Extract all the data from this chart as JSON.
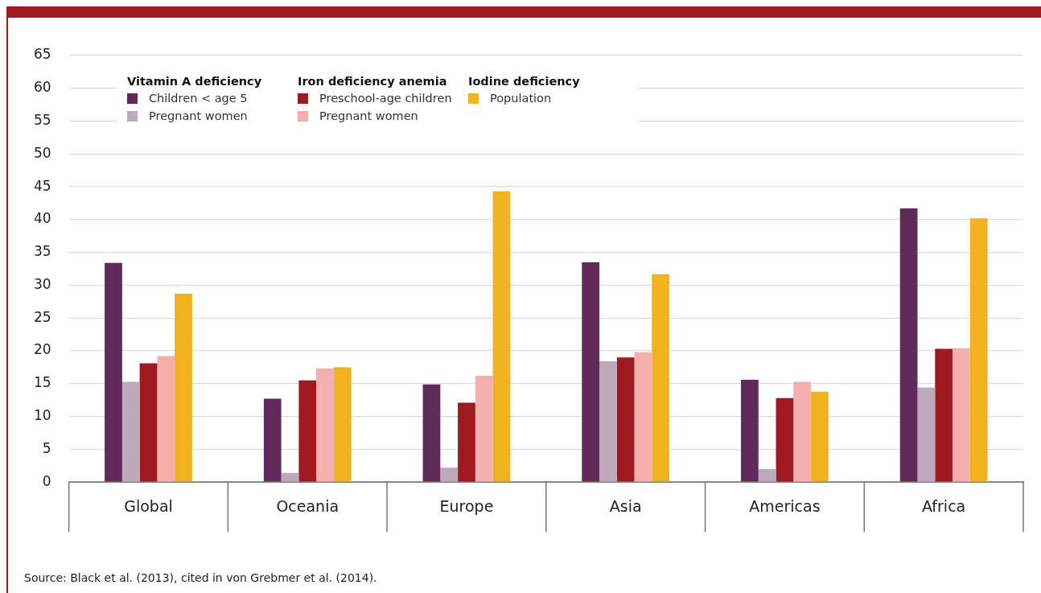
{
  "chart_data": {
    "type": "bar",
    "categories": [
      "Global",
      "Oceania",
      "Europe",
      "Asia",
      "Americas",
      "Africa"
    ],
    "series": [
      {
        "name": "Children < age 5",
        "color": "#622a5a",
        "values": [
          33.4,
          12.7,
          14.9,
          33.5,
          15.6,
          41.7
        ]
      },
      {
        "name": "Pregnant women",
        "color": "#bea8bc",
        "values": [
          15.3,
          1.4,
          2.2,
          18.4,
          2.0,
          14.4
        ]
      },
      {
        "name": "Preschool-age children",
        "color": "#9e1a20",
        "values": [
          18.1,
          15.5,
          12.1,
          19.0,
          12.8,
          20.3
        ]
      },
      {
        "name": "Pregnant women",
        "color": "#f5afad",
        "values": [
          19.2,
          17.3,
          16.2,
          19.8,
          15.3,
          20.4
        ]
      },
      {
        "name": "Population",
        "color": "#f0b31f",
        "values": [
          28.7,
          17.5,
          44.3,
          31.7,
          13.8,
          40.2
        ]
      }
    ],
    "ylim": [
      0,
      65
    ],
    "yticks": [
      0,
      5,
      10,
      15,
      20,
      25,
      30,
      35,
      40,
      45,
      50,
      55,
      60,
      65
    ],
    "grid": "y",
    "legend": "top left",
    "annotations": [
      "Vitamin A deficiency",
      "Iron deficiency anemia",
      "Iodine deficiency",
      "Source: Black et al. (2013), cited in von Grebmer et al. (2014)."
    ]
  }
}
